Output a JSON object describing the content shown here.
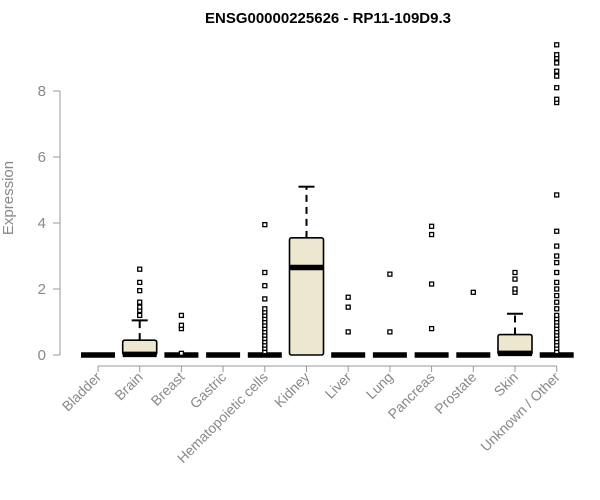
{
  "chart_data": {
    "type": "boxplot",
    "title": "ENSG00000225626 - RP11-109D9.3",
    "xlabel": "",
    "ylabel": "Expression",
    "ylim": [
      0,
      9.6
    ],
    "yticks": [
      0,
      2,
      4,
      6,
      8
    ],
    "grid": false,
    "colors": {
      "box_fill": "#ede7d0",
      "outline": "#000000",
      "axis": "#999999",
      "text": "#888888"
    },
    "categories": [
      "Bladder",
      "Brain",
      "Breast",
      "Gastric",
      "Hematopoietic cells",
      "Kidney",
      "Liver",
      "Lung",
      "Pancreas",
      "Prostate",
      "Skin",
      "Unknown / Other"
    ],
    "boxes": [
      {
        "q1": 0,
        "median": 0,
        "q3": 0,
        "whisker_low": 0,
        "whisker_high": 0,
        "outliers": []
      },
      {
        "q1": 0,
        "median": 0.02,
        "q3": 0.45,
        "whisker_low": 0,
        "whisker_high": 1.05,
        "outliers": [
          1.2,
          1.35,
          1.45,
          1.6,
          1.95,
          2.2,
          2.6
        ]
      },
      {
        "q1": 0,
        "median": 0,
        "q3": 0,
        "whisker_low": 0,
        "whisker_high": 0,
        "outliers": [
          0.05,
          0.8,
          0.9,
          1.2
        ]
      },
      {
        "q1": 0,
        "median": 0,
        "q3": 0,
        "whisker_low": 0,
        "whisker_high": 0,
        "outliers": []
      },
      {
        "q1": 0,
        "median": 0,
        "q3": 0,
        "whisker_low": 0,
        "whisker_high": 0,
        "outliers": [
          0.1,
          0.2,
          0.3,
          0.4,
          0.5,
          0.6,
          0.7,
          0.8,
          0.9,
          1.0,
          1.1,
          1.2,
          1.3,
          1.4,
          1.7,
          2.1,
          2.5,
          3.95
        ]
      },
      {
        "q1": 0,
        "median": 2.65,
        "q3": 3.55,
        "whisker_low": 0,
        "whisker_high": 5.1,
        "outliers": []
      },
      {
        "q1": 0,
        "median": 0,
        "q3": 0,
        "whisker_low": 0,
        "whisker_high": 0,
        "outliers": [
          0.7,
          1.45,
          1.75
        ]
      },
      {
        "q1": 0,
        "median": 0,
        "q3": 0,
        "whisker_low": 0,
        "whisker_high": 0,
        "outliers": [
          0.7,
          2.45
        ]
      },
      {
        "q1": 0,
        "median": 0,
        "q3": 0,
        "whisker_low": 0,
        "whisker_high": 0,
        "outliers": [
          0.8,
          2.15,
          3.65,
          3.9
        ]
      },
      {
        "q1": 0,
        "median": 0,
        "q3": 0,
        "whisker_low": 0,
        "whisker_high": 0,
        "outliers": [
          1.9
        ]
      },
      {
        "q1": 0,
        "median": 0.05,
        "q3": 0.62,
        "whisker_low": 0,
        "whisker_high": 1.25,
        "outliers": [
          1.9,
          2.0,
          2.3,
          2.5
        ]
      },
      {
        "q1": 0,
        "median": 0,
        "q3": 0,
        "whisker_low": 0,
        "whisker_high": 0,
        "outliers": [
          0.1,
          0.2,
          0.3,
          0.4,
          0.5,
          0.6,
          0.7,
          0.8,
          0.9,
          1.0,
          1.1,
          1.2,
          1.4,
          1.6,
          1.8,
          2.0,
          2.2,
          2.5,
          2.8,
          3.0,
          3.3,
          3.75,
          4.85,
          7.65,
          7.75,
          8.1,
          8.45,
          8.6,
          8.85,
          9.0,
          9.1,
          9.4
        ]
      }
    ]
  }
}
